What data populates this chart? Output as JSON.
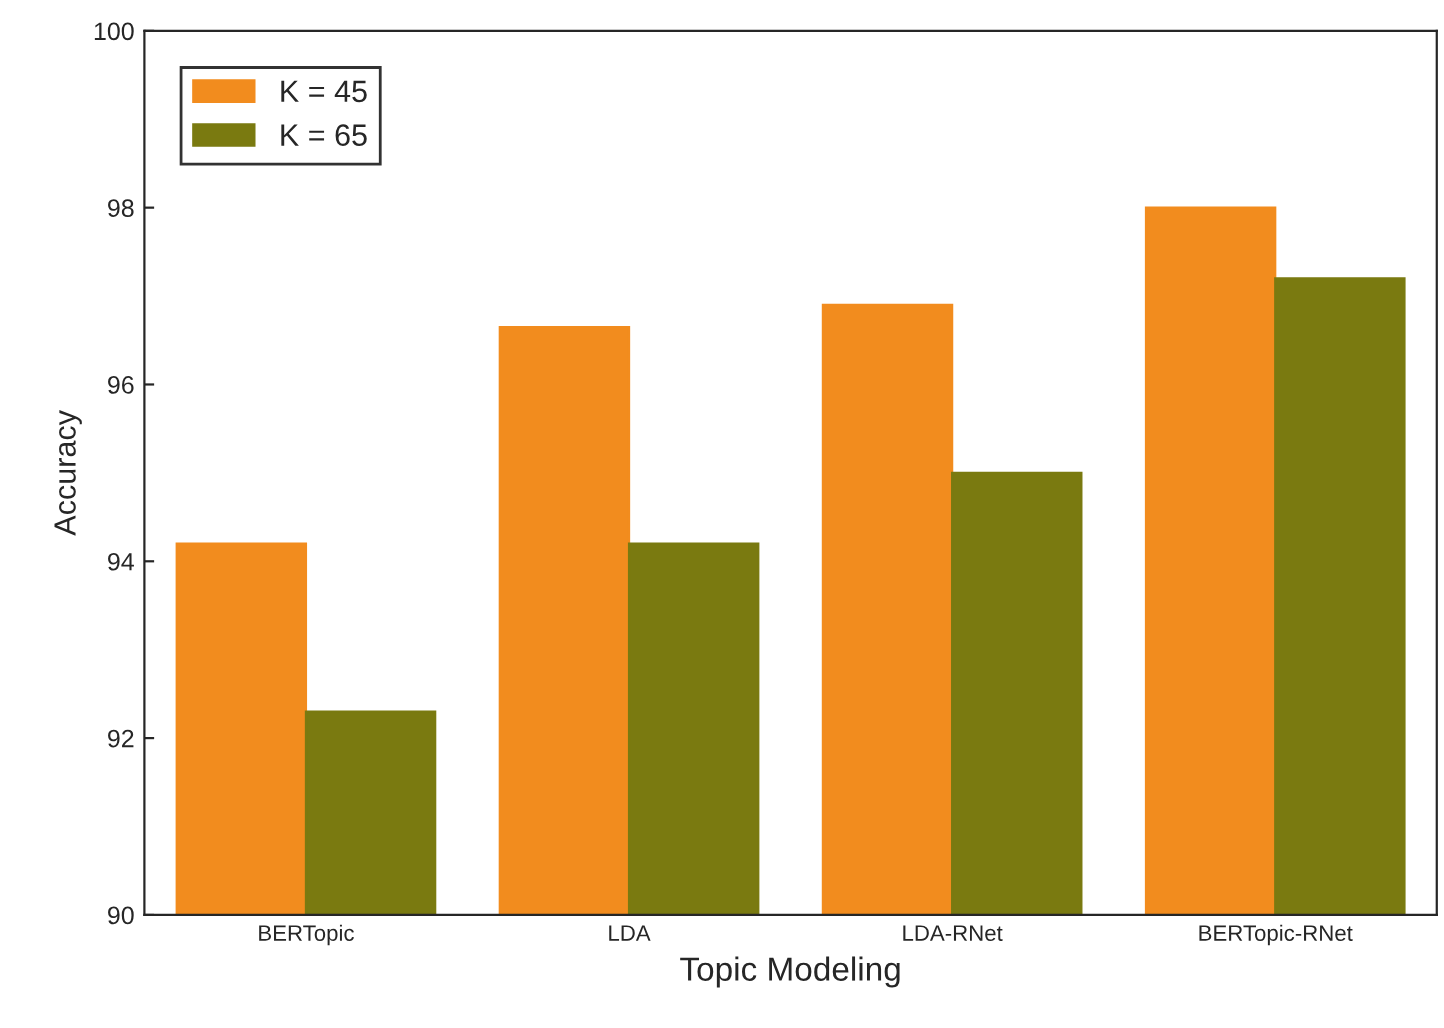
{
  "chart_data": {
    "type": "bar",
    "xlabel": "Topic Modeling",
    "ylabel": "Accuracy",
    "categories": [
      "BERTopic",
      "LDA",
      "LDA-RNet",
      "BERTopic-RNet"
    ],
    "series": [
      {
        "name": "K = 45",
        "color": "#f28c1e",
        "values": [
          94.2,
          96.65,
          96.9,
          98.0
        ]
      },
      {
        "name": "K = 65",
        "color": "#7a7a10",
        "values": [
          92.3,
          94.2,
          95.0,
          97.2
        ]
      }
    ],
    "ylim": [
      90,
      100
    ],
    "yticks": [
      90,
      92,
      94,
      96,
      98,
      100
    ],
    "legend": "top left",
    "grid": false
  }
}
